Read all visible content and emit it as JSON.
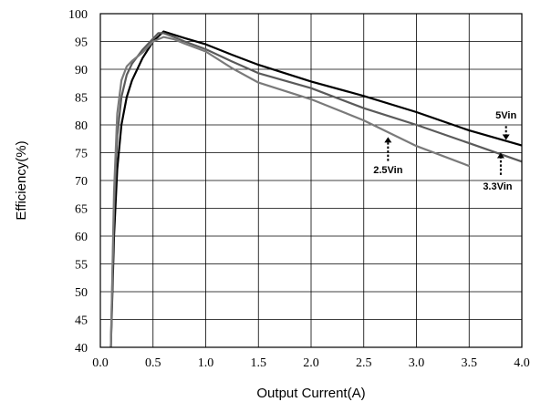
{
  "chart_data": {
    "type": "line",
    "xlabel": "Output Current(A)",
    "ylabel": "Efficiency(%)",
    "xlim": [
      0.0,
      4.0
    ],
    "ylim": [
      40,
      100
    ],
    "x_ticks": [
      "0.0",
      "0.5",
      "1.0",
      "1.5",
      "2.0",
      "2.5",
      "3.0",
      "3.5",
      "4.0"
    ],
    "y_ticks": [
      "40",
      "45",
      "50",
      "55",
      "60",
      "65",
      "70",
      "75",
      "80",
      "85",
      "90",
      "95",
      "100"
    ],
    "x_tick_values": [
      0.0,
      0.5,
      1.0,
      1.5,
      2.0,
      2.5,
      3.0,
      3.5,
      4.0
    ],
    "y_tick_values": [
      40,
      45,
      50,
      55,
      60,
      65,
      70,
      75,
      80,
      85,
      90,
      95,
      100
    ],
    "grid": true,
    "series": [
      {
        "name": "5Vin",
        "color": "#000000",
        "points": [
          [
            0.1,
            40
          ],
          [
            0.13,
            60
          ],
          [
            0.16,
            72
          ],
          [
            0.2,
            80
          ],
          [
            0.25,
            85
          ],
          [
            0.3,
            88
          ],
          [
            0.4,
            92
          ],
          [
            0.5,
            95
          ],
          [
            0.6,
            96.8
          ],
          [
            0.7,
            96.2
          ],
          [
            0.8,
            95.6
          ],
          [
            1.0,
            94.5
          ],
          [
            1.25,
            92.6
          ],
          [
            1.5,
            90.8
          ],
          [
            2.0,
            87.8
          ],
          [
            2.5,
            85.2
          ],
          [
            3.0,
            82.3
          ],
          [
            3.5,
            79.0
          ],
          [
            4.0,
            76.3
          ]
        ]
      },
      {
        "name": "3.3Vin",
        "color": "#5a5a5a",
        "points": [
          [
            0.1,
            40
          ],
          [
            0.13,
            65
          ],
          [
            0.16,
            78
          ],
          [
            0.2,
            85
          ],
          [
            0.25,
            89
          ],
          [
            0.3,
            91
          ],
          [
            0.4,
            93.5
          ],
          [
            0.5,
            95.5
          ],
          [
            0.55,
            96.5
          ],
          [
            0.6,
            96.5
          ],
          [
            0.7,
            95.8
          ],
          [
            0.8,
            95.0
          ],
          [
            1.0,
            93.6
          ],
          [
            1.25,
            91.4
          ],
          [
            1.5,
            89.3
          ],
          [
            2.0,
            86.6
          ],
          [
            2.5,
            83.0
          ],
          [
            3.0,
            80.0
          ],
          [
            3.5,
            76.7
          ],
          [
            4.0,
            73.4
          ]
        ]
      },
      {
        "name": "2.5Vin",
        "color": "#7a7a7a",
        "points": [
          [
            0.1,
            40
          ],
          [
            0.13,
            68
          ],
          [
            0.16,
            82
          ],
          [
            0.2,
            88
          ],
          [
            0.25,
            90.5
          ],
          [
            0.3,
            91.5
          ],
          [
            0.4,
            93
          ],
          [
            0.5,
            95
          ],
          [
            0.6,
            95.8
          ],
          [
            0.7,
            95.4
          ],
          [
            0.8,
            94.6
          ],
          [
            1.0,
            93.2
          ],
          [
            1.25,
            90.2
          ],
          [
            1.5,
            87.6
          ],
          [
            2.0,
            84.6
          ],
          [
            2.5,
            80.8
          ],
          [
            3.0,
            76.2
          ],
          [
            3.5,
            72.6
          ]
        ]
      }
    ],
    "annotations": [
      {
        "text": "5Vin",
        "arrow_x": 3.85,
        "arrow_from_y": 79.8,
        "arrow_to_y": 77.3,
        "label_x": 3.85,
        "label_y": 81.8
      },
      {
        "text": "2.5Vin",
        "arrow_x": 2.73,
        "arrow_from_y": 73.5,
        "arrow_to_y": 77.8,
        "label_x": 2.73,
        "label_y": 72.0
      },
      {
        "text": "3.3Vin",
        "arrow_x": 3.8,
        "arrow_from_y": 71.0,
        "arrow_to_y": 75.0,
        "label_x": 3.77,
        "label_y": 69.0
      }
    ]
  }
}
